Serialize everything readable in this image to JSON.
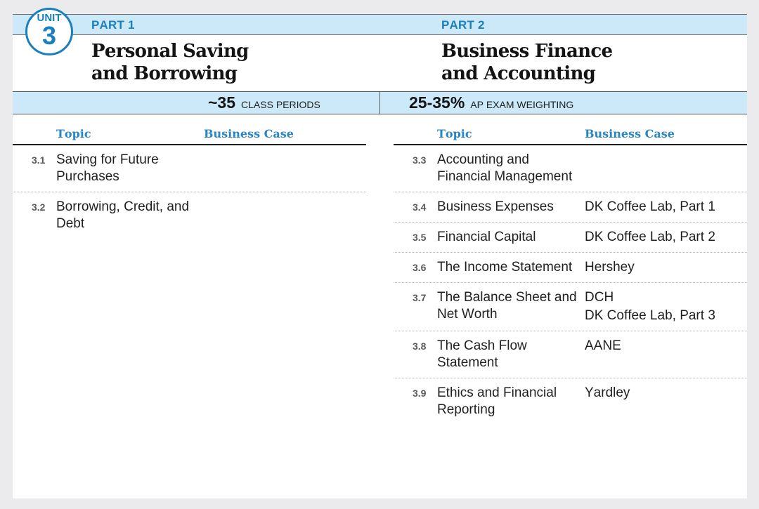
{
  "unit_badge": {
    "label": "UNIT",
    "number": "3"
  },
  "parts": [
    {
      "label": "PART 1",
      "title": [
        "Personal Saving",
        "and Borrowing"
      ]
    },
    {
      "label": "PART 2",
      "title": [
        "Business Finance",
        "and Accounting"
      ]
    }
  ],
  "stats": {
    "class_periods": {
      "value": "~35",
      "label": "CLASS PERIODS"
    },
    "exam_weighting": {
      "value": "25-35%",
      "label": "AP EXAM WEIGHTING"
    }
  },
  "tables": [
    {
      "headers": {
        "topic": "Topic",
        "business_case": "Business Case"
      },
      "rows": [
        {
          "number": "3.1",
          "topic": "Saving for Future Purchases",
          "business_case": []
        },
        {
          "number": "3.2",
          "topic": "Borrowing, Credit, and Debt",
          "business_case": []
        }
      ]
    },
    {
      "headers": {
        "topic": "Topic",
        "business_case": "Business Case"
      },
      "rows": [
        {
          "number": "3.3",
          "topic": "Accounting and Financial Management",
          "business_case": []
        },
        {
          "number": "3.4",
          "topic": "Business Expenses",
          "business_case": [
            "DK Coffee Lab, Part 1"
          ]
        },
        {
          "number": "3.5",
          "topic": "Financial Capital",
          "business_case": [
            "DK Coffee Lab, Part 2"
          ]
        },
        {
          "number": "3.6",
          "topic": "The Income Statement",
          "business_case": [
            "Hershey"
          ]
        },
        {
          "number": "3.7",
          "topic": "The Balance Sheet and Net Worth",
          "business_case": [
            "DCH",
            "DK Coffee Lab, Part 3"
          ]
        },
        {
          "number": "3.8",
          "topic": "The Cash Flow Statement",
          "business_case": [
            "AANE"
          ]
        },
        {
          "number": "3.9",
          "topic": "Ethics and Financial Reporting",
          "business_case": [
            "Yardley"
          ]
        }
      ]
    }
  ],
  "colors": {
    "accent_blue": "#1b7fbe",
    "heading_blue": "#2a86c2",
    "band_blue": "#cbe9f8",
    "page_gray": "#ebebed"
  }
}
